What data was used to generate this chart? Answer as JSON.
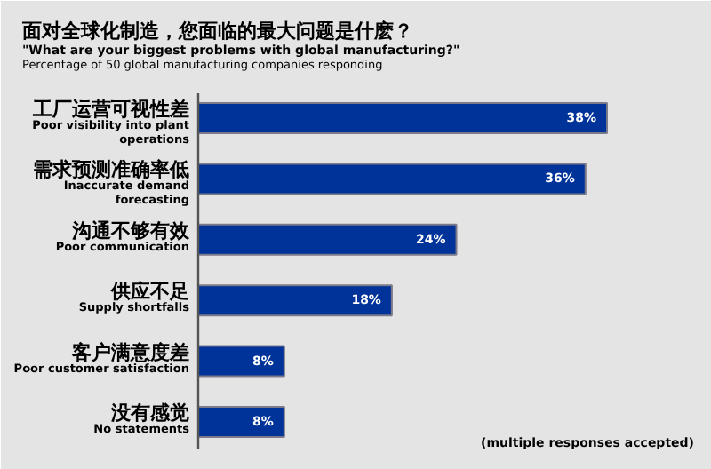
{
  "chart_data": {
    "type": "bar",
    "orientation": "horizontal",
    "title": "面对全球化制造，您面临的最大问题是什麽？",
    "subtitle": "\"What are your biggest problems with global manufacturing?\"",
    "annotations": [
      "Percentage of 50 global manufacturing companies responding",
      "(multiple responses accepted)"
    ],
    "categories": [
      "工厂运营可视性差\nPoor visibility into plant\noperations",
      "需求预测准确率低\nInaccurate demand\nforecasting",
      "沟通不够有效\nPoor communication",
      "供应不足\nSupply shortfalls",
      "客户满意度差\nPoor customer satisfaction",
      "没有感觉\nNo statements"
    ],
    "values": [
      38,
      36,
      24,
      18,
      8,
      8
    ],
    "color": "#003399",
    "value_labels": [
      "38%",
      "36%",
      "24%",
      "18%",
      "8%",
      "8%"
    ],
    "tick_labels": "y"
  }
}
